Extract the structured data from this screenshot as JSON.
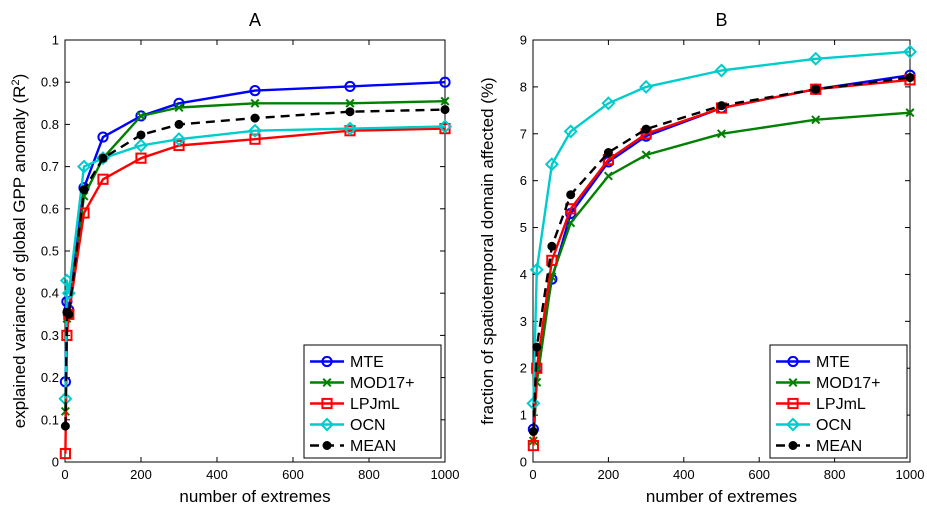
{
  "colors": {
    "MTE": "#0000ff",
    "MOD17+": "#008000",
    "LPJmL": "#ff0000",
    "OCN": "#00cccc",
    "MEAN": "#000000"
  },
  "chart_data": [
    {
      "type": "line",
      "title": "A",
      "xlabel": "number of extremes",
      "ylabel": "explained variance of global GPP anomaly (R",
      "ylabel_sup": "2",
      "ylabel_end": ")",
      "xlim": [
        0,
        1000
      ],
      "ylim": [
        0,
        1
      ],
      "xticks": [
        0,
        200,
        400,
        600,
        800,
        1000
      ],
      "yticks": [
        0,
        0.1,
        0.2,
        0.3,
        0.4,
        0.5,
        0.6,
        0.7,
        0.8,
        0.9,
        1
      ],
      "xtick_labels": [
        "0",
        "200",
        "400",
        "600",
        "800",
        "1000"
      ],
      "ytick_labels": [
        "0",
        "0.1",
        "0.2",
        "0.3",
        "0.4",
        "0.5",
        "0.6",
        "0.7",
        "0.8",
        "0.9",
        "1"
      ],
      "legend_position": "bottom-right",
      "x": [
        1,
        5,
        10,
        50,
        100,
        200,
        300,
        500,
        750,
        1000
      ],
      "series": [
        {
          "name": "MTE",
          "marker": "circle",
          "dash": false,
          "values": [
            0.19,
            0.38,
            0.36,
            0.65,
            0.77,
            0.82,
            0.85,
            0.88,
            0.89,
            0.9
          ]
        },
        {
          "name": "MOD17+",
          "marker": "x",
          "dash": false,
          "values": [
            0.12,
            0.34,
            0.35,
            0.63,
            0.72,
            0.82,
            0.84,
            0.85,
            0.85,
            0.855
          ]
        },
        {
          "name": "LPJmL",
          "marker": "square",
          "dash": false,
          "values": [
            0.02,
            0.3,
            0.35,
            0.59,
            0.67,
            0.72,
            0.75,
            0.765,
            0.785,
            0.79
          ]
        },
        {
          "name": "OCN",
          "marker": "diamond",
          "dash": false,
          "values": [
            0.15,
            0.43,
            0.4,
            0.7,
            0.72,
            0.75,
            0.765,
            0.785,
            0.79,
            0.795
          ]
        },
        {
          "name": "MEAN",
          "marker": "dot",
          "dash": true,
          "values": [
            0.085,
            0.355,
            0.35,
            0.645,
            0.72,
            0.775,
            0.8,
            0.815,
            0.83,
            0.835
          ]
        }
      ]
    },
    {
      "type": "line",
      "title": "B",
      "xlabel": "number of extremes",
      "ylabel": "fraction of spatiotemporal domain affected (%)",
      "xlim": [
        0,
        1000
      ],
      "ylim": [
        0,
        9
      ],
      "xticks": [
        0,
        200,
        400,
        600,
        800,
        1000
      ],
      "yticks": [
        0,
        1,
        2,
        3,
        4,
        5,
        6,
        7,
        8,
        9
      ],
      "xtick_labels": [
        "0",
        "200",
        "400",
        "600",
        "800",
        "1000"
      ],
      "ytick_labels": [
        "0",
        "1",
        "2",
        "3",
        "4",
        "5",
        "6",
        "7",
        "8",
        "9"
      ],
      "legend_position": "bottom-right",
      "x": [
        1,
        10,
        50,
        100,
        200,
        300,
        500,
        750,
        1000
      ],
      "series": [
        {
          "name": "MTE",
          "marker": "circle",
          "dash": false,
          "values": [
            0.7,
            2.0,
            3.9,
            5.3,
            6.4,
            6.95,
            7.55,
            7.95,
            8.25
          ]
        },
        {
          "name": "MOD17+",
          "marker": "x",
          "dash": false,
          "values": [
            0.45,
            1.7,
            3.95,
            5.1,
            6.1,
            6.55,
            7.0,
            7.3,
            7.45
          ]
        },
        {
          "name": "LPJmL",
          "marker": "square",
          "dash": false,
          "values": [
            0.35,
            2.0,
            4.3,
            5.4,
            6.45,
            7.0,
            7.55,
            7.95,
            8.15
          ]
        },
        {
          "name": "OCN",
          "marker": "diamond",
          "dash": false,
          "values": [
            1.25,
            4.1,
            6.35,
            7.05,
            7.65,
            8.0,
            8.35,
            8.6,
            8.75
          ]
        },
        {
          "name": "MEAN",
          "marker": "dot",
          "dash": true,
          "values": [
            0.65,
            2.45,
            4.6,
            5.7,
            6.6,
            7.1,
            7.6,
            7.95,
            8.2
          ]
        }
      ]
    }
  ]
}
